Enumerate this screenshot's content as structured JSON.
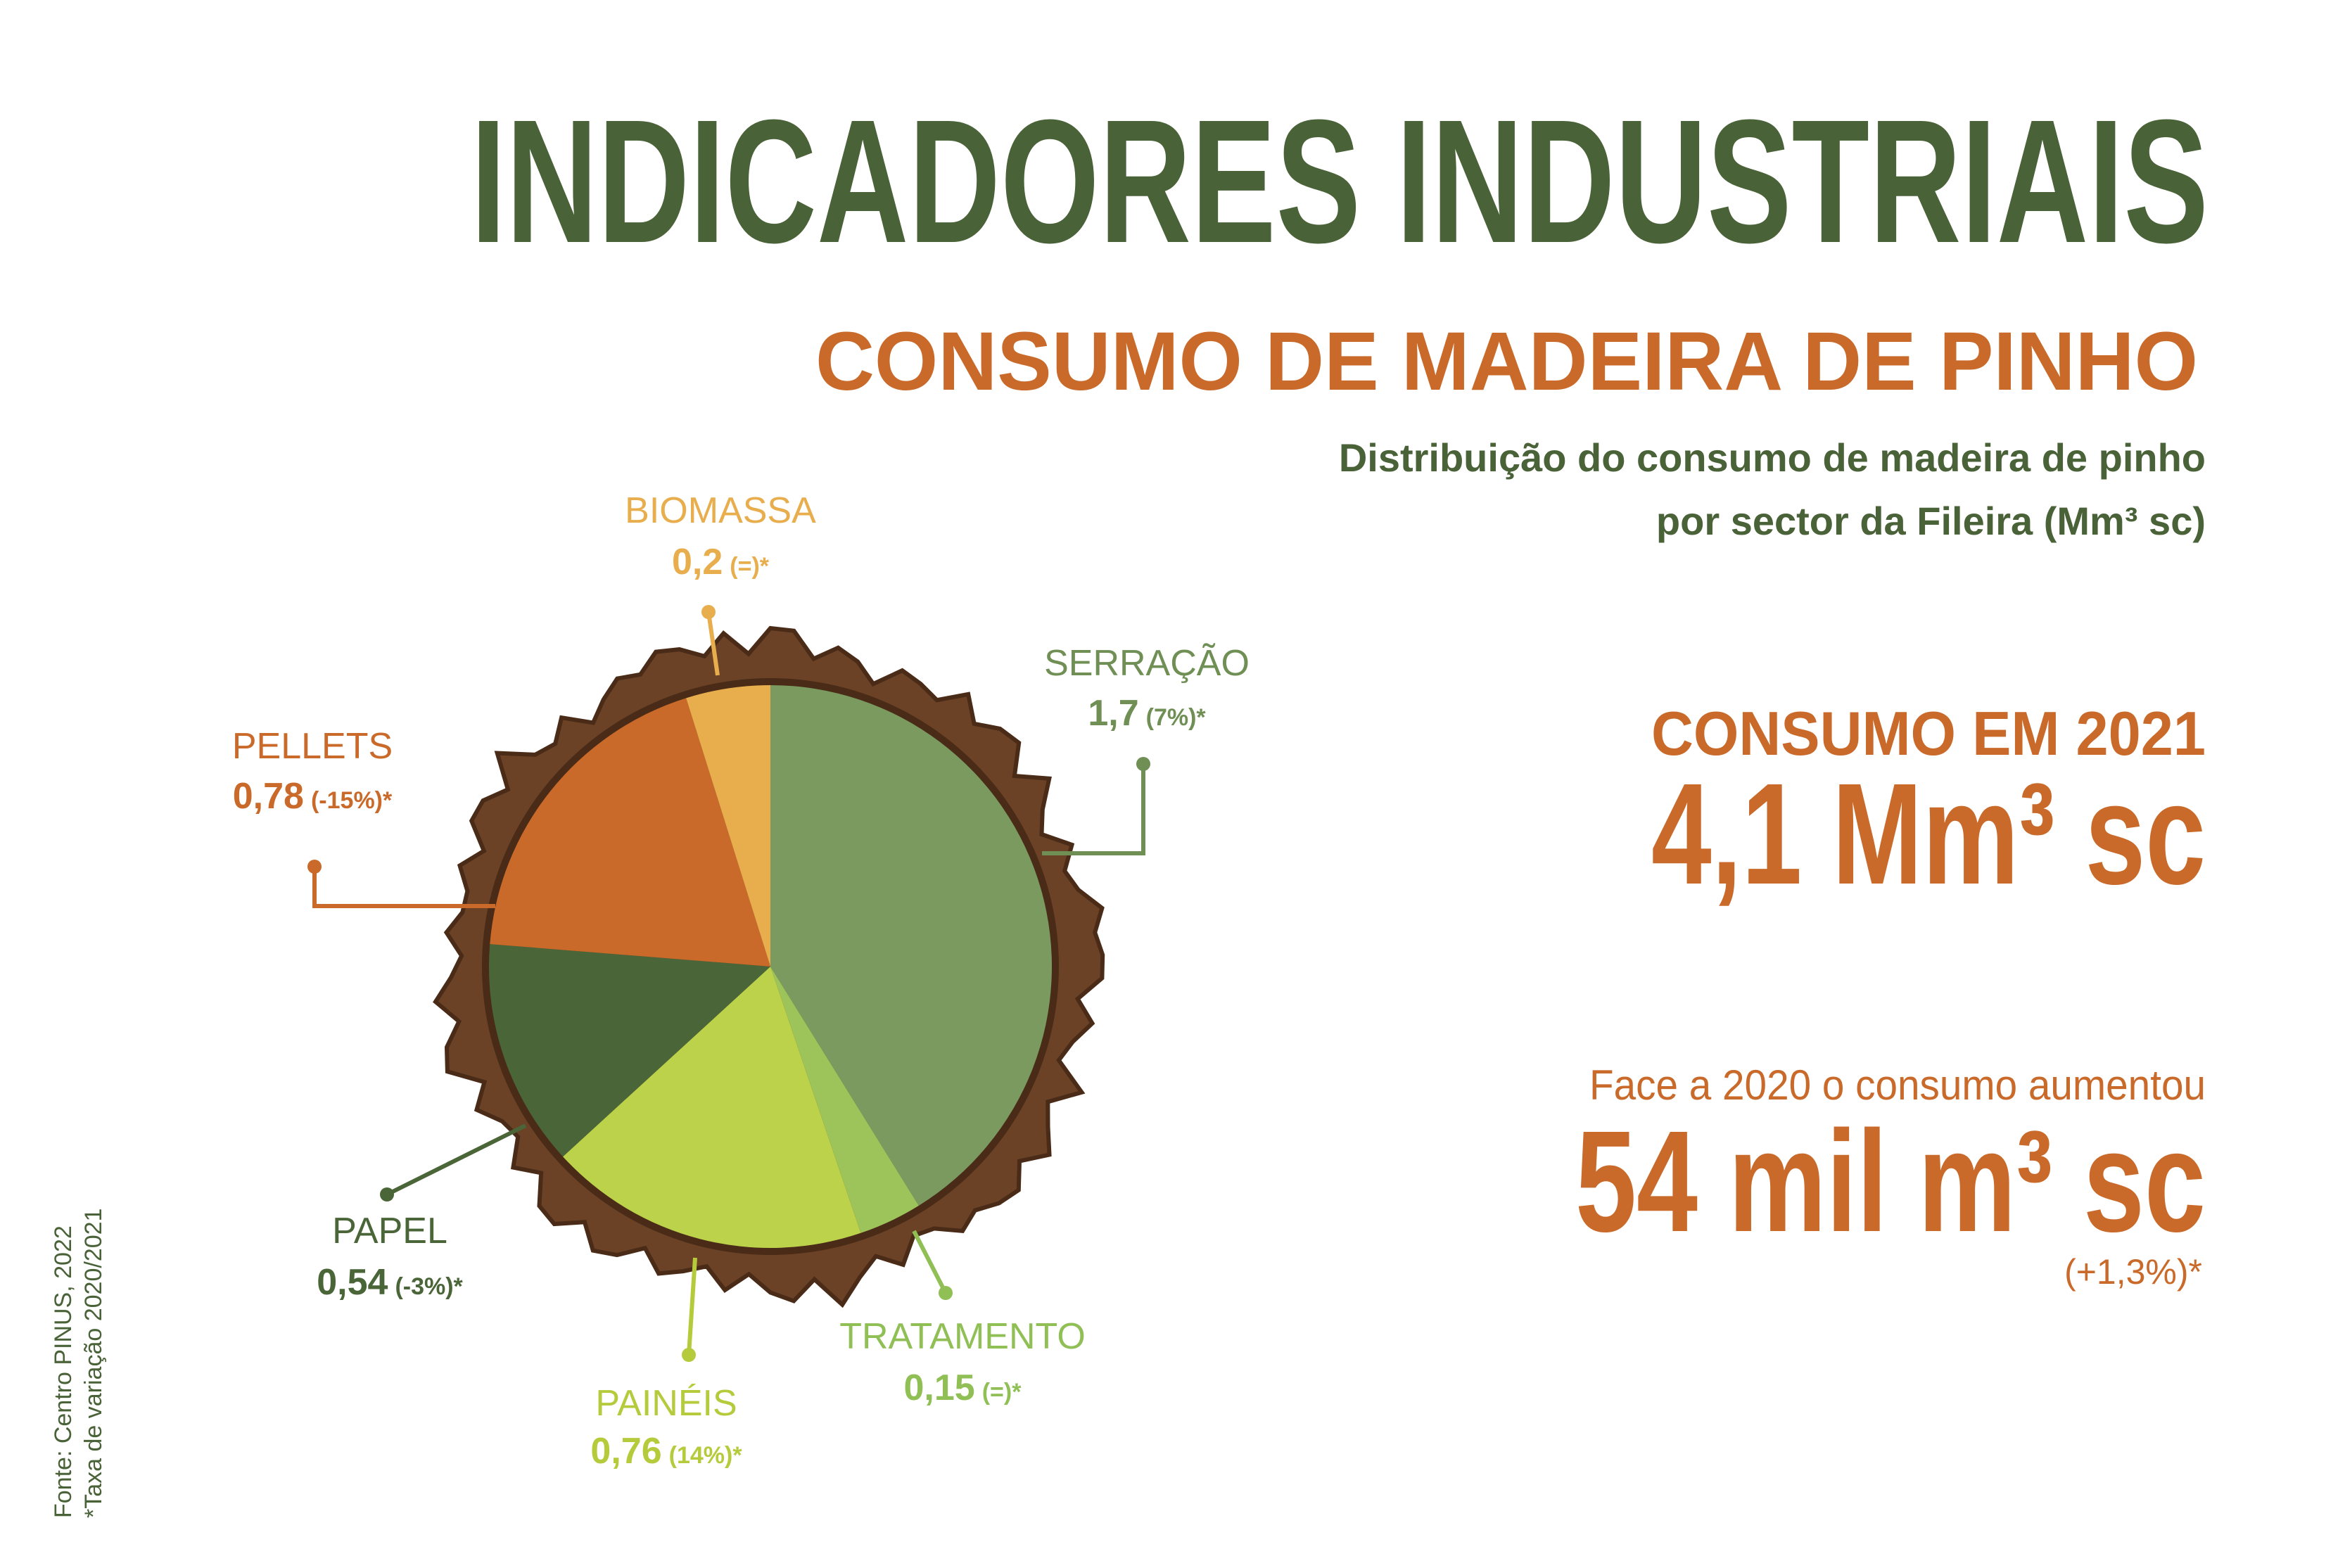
{
  "title": "INDICADORES INDUSTRIAIS",
  "subtitle": "CONSUMO DE MADEIRA DE PINHO",
  "chart_data": {
    "type": "pie",
    "title_lines": [
      "Distribuição do consumo de madeira de pinho",
      "por sector da Fileira (Mm³ sc)"
    ],
    "categories": [
      "SERRAÇÃO",
      "TRATAMENTO",
      "PAINÉIS",
      "PAPEL",
      "PELLETS",
      "BIOMASSA"
    ],
    "values": [
      1.7,
      0.15,
      0.76,
      0.54,
      0.78,
      0.2
    ],
    "value_labels": [
      "1,7",
      "0,15",
      "0,76",
      "0,54",
      "0,78",
      "0,2"
    ],
    "changes": [
      "(7%)*",
      "(=)*",
      "(14%)*",
      "(-3%)*",
      "(-15%)*",
      "(=)*"
    ],
    "colors": [
      "#7a9a60",
      "#9dc35b",
      "#bcd24a",
      "#4a6639",
      "#c96a2a",
      "#e8ad4d"
    ]
  },
  "summary": {
    "label": "CONSUMO EM 2021",
    "total": "4,1 Mm³ sc",
    "change_label": "Face a 2020 o consumo aumentou",
    "change": "54 mil m³ sc",
    "change_pct": "(+1,3%)*"
  },
  "footer": [
    "Fonte: Centro PINUS, 2022",
    "*Taxa de variação 2020/2021"
  ]
}
